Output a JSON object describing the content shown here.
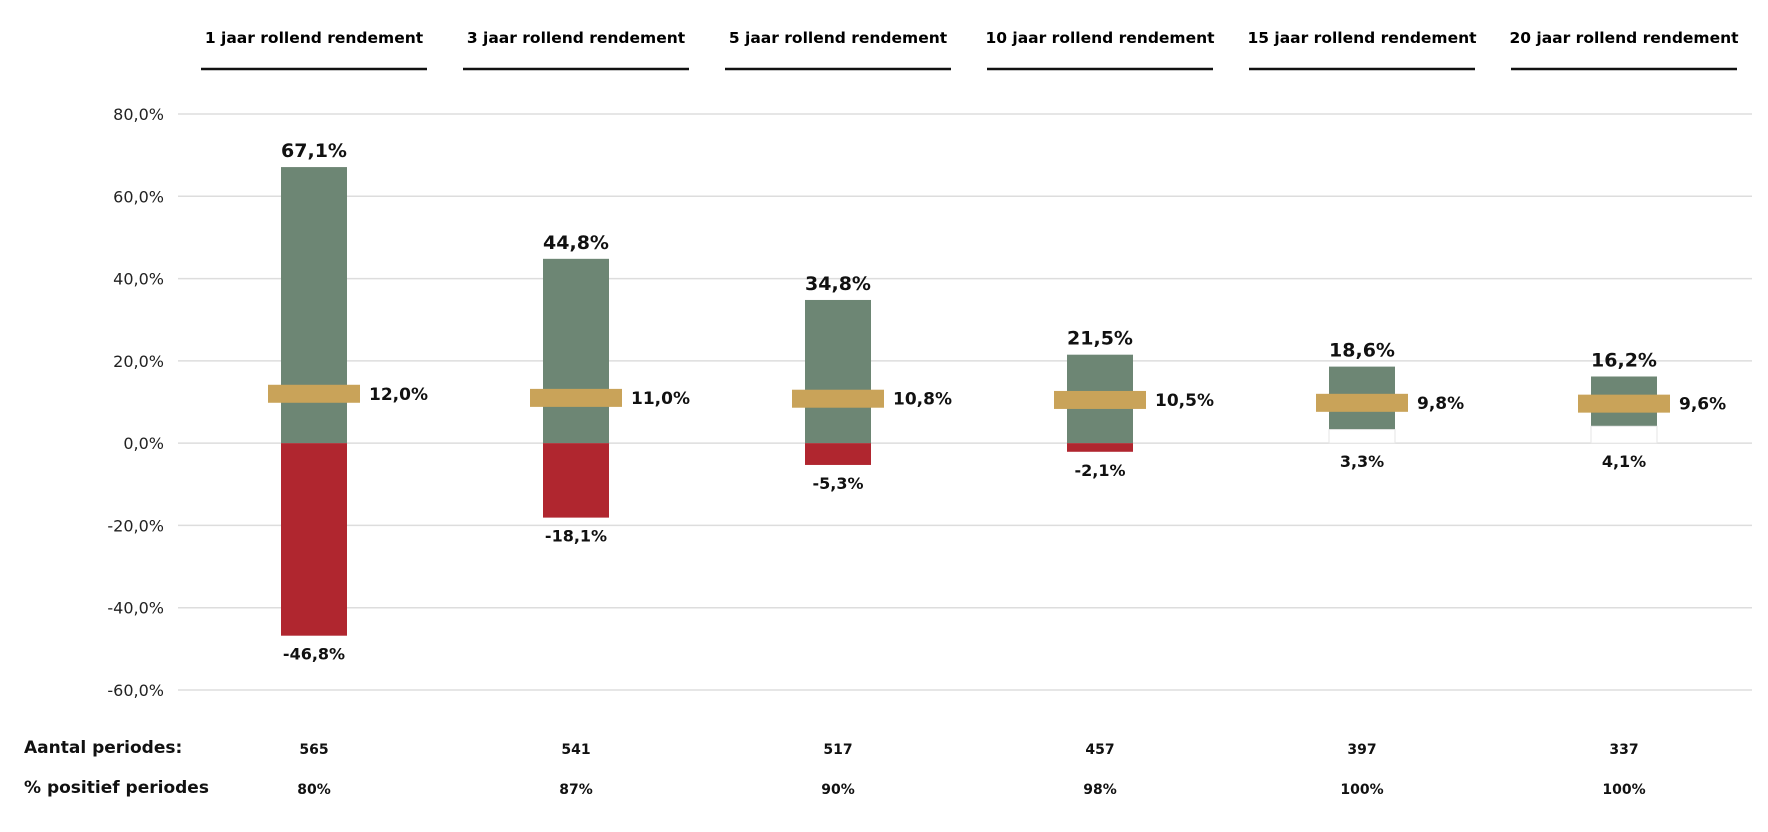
{
  "chart_data": {
    "type": "bar",
    "categories": [
      "1 jaar rollend rendement",
      "3 jaar rollend rendement",
      "5 jaar rollend rendement",
      "10 jaar rollend rendement",
      "15 jaar rollend rendement",
      "20 jaar rollend rendement"
    ],
    "series": [
      {
        "values": [
          67.1,
          44.8,
          34.8,
          21.5,
          18.6,
          16.2
        ]
      },
      {
        "values": [
          -46.8,
          -18.1,
          -5.3,
          -2.1,
          3.3,
          4.1
        ]
      },
      {
        "values": [
          12.0,
          11.0,
          10.8,
          10.5,
          9.8,
          9.6
        ]
      }
    ],
    "labels": {
      "max": [
        "67,1%",
        "44,8%",
        "34,8%",
        "21,5%",
        "18,6%",
        "16,2%"
      ],
      "min": [
        "-46,8%",
        "-18,1%",
        "-5,3%",
        "-2,1%",
        "3,3%",
        "4,1%"
      ],
      "avg": [
        "12,0%",
        "11,0%",
        "10,8%",
        "10,5%",
        "9,8%",
        "9,6%"
      ]
    },
    "ylim": [
      -60,
      80
    ],
    "yticks": [
      80,
      60,
      40,
      20,
      0,
      -20,
      -40,
      -60
    ],
    "ytick_labels": [
      "80,0%",
      "60,0%",
      "40,0%",
      "20,0%",
      "0,0%",
      "-20,0%",
      "-40,0%",
      "-60,0%"
    ],
    "grid": true,
    "colors": {
      "positive": "#6d8674",
      "negative": "#b0262f",
      "average": "#c9a359",
      "grid": "#dddddd"
    }
  },
  "table": {
    "rows": [
      {
        "label": "Aantal periodes:",
        "values": [
          "565",
          "541",
          "517",
          "457",
          "397",
          "337"
        ]
      },
      {
        "label": "% positief periodes",
        "values": [
          "80%",
          "87%",
          "90%",
          "98%",
          "100%",
          "100%"
        ]
      }
    ]
  }
}
